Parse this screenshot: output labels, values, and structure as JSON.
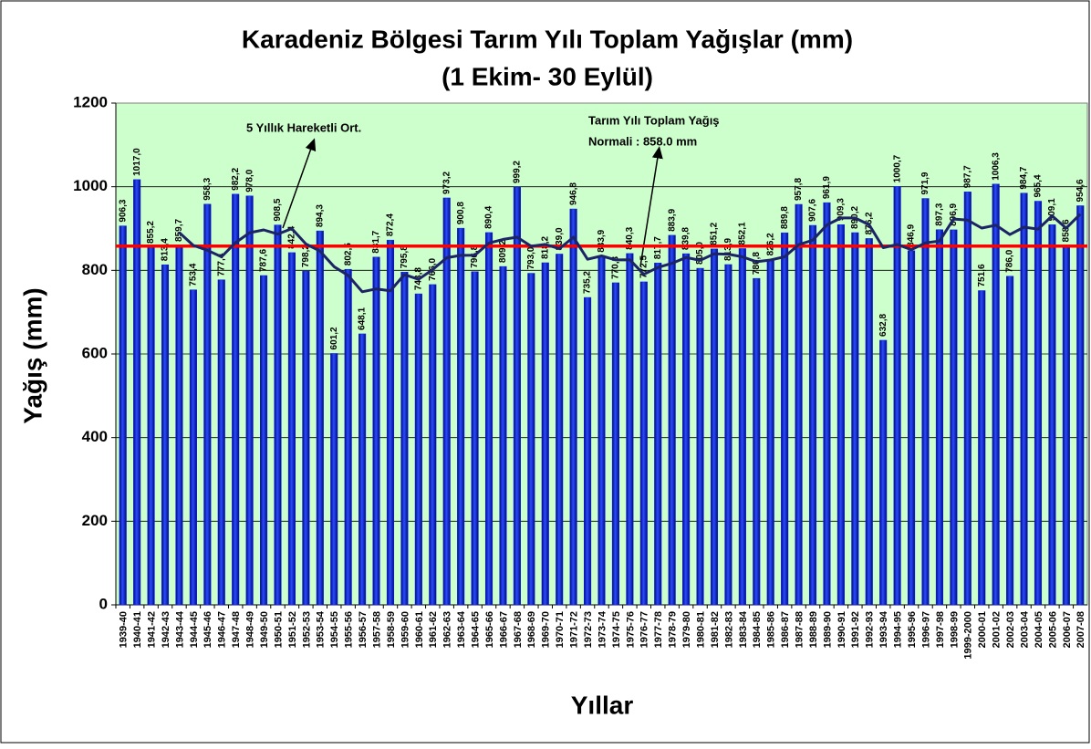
{
  "chart_data": {
    "type": "bar",
    "title": "Karadeniz Bölgesi Tarım Yılı Toplam Yağışlar (mm)",
    "subtitle": "(1 Ekim- 30 Eylül)",
    "y_label": "Yağış (mm)",
    "x_label": "Yıllar",
    "categories": [
      "1939-40",
      "1940-41",
      "1941-42",
      "1942-43",
      "1943-44",
      "1944-45",
      "1945-46",
      "1946-47",
      "1947-48",
      "1948-49",
      "1949-50",
      "1950-51",
      "1951-52",
      "1952-53",
      "1953-54",
      "1954-55",
      "1955-56",
      "1956-57",
      "1957-58",
      "1958-59",
      "1959-60",
      "1960-61",
      "1961-62",
      "1962-63",
      "1963-64",
      "1964-65",
      "1965-66",
      "1966-67",
      "1967-68",
      "1968-69",
      "1969-70",
      "1970-71",
      "1971-72",
      "1972-73",
      "1973-74",
      "1974-75",
      "1975-76",
      "1976-77",
      "1977-78",
      "1978-79",
      "1979-80",
      "1980-81",
      "1981-82",
      "1982-83",
      "1983-84",
      "1984-85",
      "1985-86",
      "1986-87",
      "1987-88",
      "1988-89",
      "1989-90",
      "1990-91",
      "1991-92",
      "1992-93",
      "1993-94",
      "1994-95",
      "1995-96",
      "1996-97",
      "1997-98",
      "1998-99",
      "1999-2000",
      "2000-01",
      "2001-02",
      "2002-03",
      "2003-04",
      "2004-05",
      "2005-06",
      "2006-07",
      "2007-08"
    ],
    "values": [
      906.3,
      1017.0,
      855.2,
      813.4,
      859.7,
      753.4,
      958.3,
      777.4,
      982.2,
      978.0,
      787.6,
      908.5,
      842.4,
      798.2,
      894.3,
      601.2,
      802.5,
      648.1,
      831.7,
      872.4,
      795.8,
      743.8,
      766.0,
      973.2,
      900.8,
      796.8,
      890.4,
      809.2,
      999.2,
      793.0,
      818.2,
      839.0,
      946.8,
      735.2,
      833.9,
      770.3,
      840.3,
      772.5,
      817.7,
      883.9,
      839.8,
      805.0,
      851.2,
      813.9,
      852.1,
      780.8,
      826.2,
      889.8,
      957.8,
      907.6,
      961.9,
      909.3,
      890.2,
      876.2,
      632.8,
      1000.7,
      846.9,
      971.9,
      897.3,
      896.9,
      987.7,
      751.6,
      1006.3,
      786.0,
      984.7,
      965.4,
      909.1,
      858.6,
      954.6
    ],
    "value_labels": [
      "906,3",
      "1017,0",
      "855,2",
      "813,4",
      "859,7",
      "753,4",
      "958,3",
      "777,4",
      "982,2",
      "978,0",
      "787,6",
      "908,5",
      "842,4",
      "798,2",
      "894,3",
      "601,2",
      "802,5",
      "648,1",
      "831,7",
      "872,4",
      "795,8",
      "743,8",
      "766,0",
      "973,2",
      "900,8",
      "796,8",
      "890,4",
      "809,2",
      "999,2",
      "793,0",
      "818,2",
      "839,0",
      "946,8",
      "735,2",
      "833,9",
      "770,3",
      "840,3",
      "772,5",
      "817,7",
      "883,9",
      "839,8",
      "805,0",
      "851,2",
      "813,9",
      "852,1",
      "780,8",
      "826,2",
      "889,8",
      "957,8",
      "907,6",
      "961,9",
      "909,3",
      "890,2",
      "876,2",
      "632,8",
      "1000,7",
      "846,9",
      "971,9",
      "897,3",
      "896,9",
      "987,7",
      "751,6",
      "1006,3",
      "786,0",
      "984,7",
      "965,4",
      "909,1",
      "858,6",
      "954,6"
    ],
    "color": "#0a1ee6",
    "moving_average": {
      "color": "#1c2466",
      "values": [
        null,
        null,
        null,
        null,
        890.3,
        859.7,
        848.0,
        832.4,
        866.2,
        889.9,
        896.7,
        886.7,
        899.7,
        862.9,
        846.2,
        808.9,
        787.7,
        748.9,
        755.6,
        751.2,
        790.1,
        778.4,
        801.9,
        830.2,
        835.9,
        836.1,
        865.4,
        874.1,
        879.3,
        857.7,
        862.0,
        851.7,
        879.2,
        826.4,
        834.6,
        825.0,
        825.3,
        790.4,
        806.9,
        816.9,
        830.8,
        823.8,
        839.5,
        838.8,
        832.4,
        820.6,
        824.8,
        832.6,
        861.3,
        872.4,
        908.7,
        925.3,
        925.4,
        909.0,
        854.1,
        861.8,
        849.4,
        865.7,
        869.9,
        922.7,
        920.1,
        901.1,
        908.0,
        885.7,
        903.3,
        898.8,
        930.3,
        900.8,
        934.5
      ]
    },
    "normal": {
      "value": 858.0,
      "color": "#ff0000"
    },
    "annotations": [
      "5 Yıllık Hareketli Ort.",
      "Tarım Yılı Toplam Yağış",
      "Normali : 858.0 mm"
    ],
    "ylim": [
      0,
      1200
    ],
    "yticks": [
      0,
      200,
      400,
      600,
      800,
      1000,
      1200
    ],
    "grid": true,
    "background": "#ccffcc"
  }
}
